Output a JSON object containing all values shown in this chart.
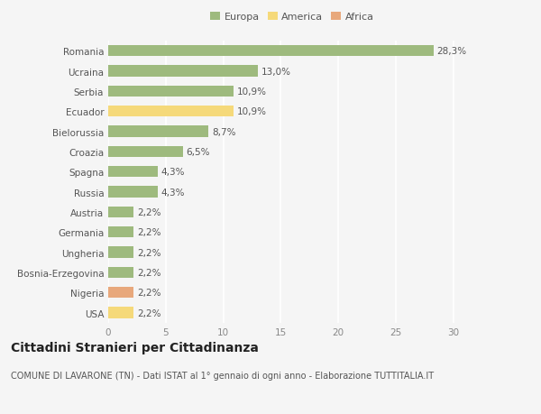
{
  "countries": [
    "Romania",
    "Ucraina",
    "Serbia",
    "Ecuador",
    "Bielorussia",
    "Croazia",
    "Spagna",
    "Russia",
    "Austria",
    "Germania",
    "Ungheria",
    "Bosnia-Erzegovina",
    "Nigeria",
    "USA"
  ],
  "values": [
    28.3,
    13.0,
    10.9,
    10.9,
    8.7,
    6.5,
    4.3,
    4.3,
    2.2,
    2.2,
    2.2,
    2.2,
    2.2,
    2.2
  ],
  "labels": [
    "28,3%",
    "13,0%",
    "10,9%",
    "10,9%",
    "8,7%",
    "6,5%",
    "4,3%",
    "4,3%",
    "2,2%",
    "2,2%",
    "2,2%",
    "2,2%",
    "2,2%",
    "2,2%"
  ],
  "continents": [
    "Europa",
    "Europa",
    "Europa",
    "America",
    "Europa",
    "Europa",
    "Europa",
    "Europa",
    "Europa",
    "Europa",
    "Europa",
    "Europa",
    "Africa",
    "America"
  ],
  "colors": {
    "Europa": "#9eba7e",
    "America": "#f5d97a",
    "Africa": "#e8a87c"
  },
  "xlim": [
    0,
    32
  ],
  "xticks": [
    0,
    5,
    10,
    15,
    20,
    25,
    30
  ],
  "title": "Cittadini Stranieri per Cittadinanza",
  "subtitle": "COMUNE DI LAVARONE (TN) - Dati ISTAT al 1° gennaio di ogni anno - Elaborazione TUTTITALIA.IT",
  "bg_color": "#f5f5f5",
  "plot_bg_color": "#f5f5f5",
  "grid_color": "#ffffff",
  "bar_height": 0.55,
  "label_fontsize": 7.5,
  "tick_fontsize": 7.5,
  "title_fontsize": 10,
  "subtitle_fontsize": 7,
  "legend_fontsize": 8
}
